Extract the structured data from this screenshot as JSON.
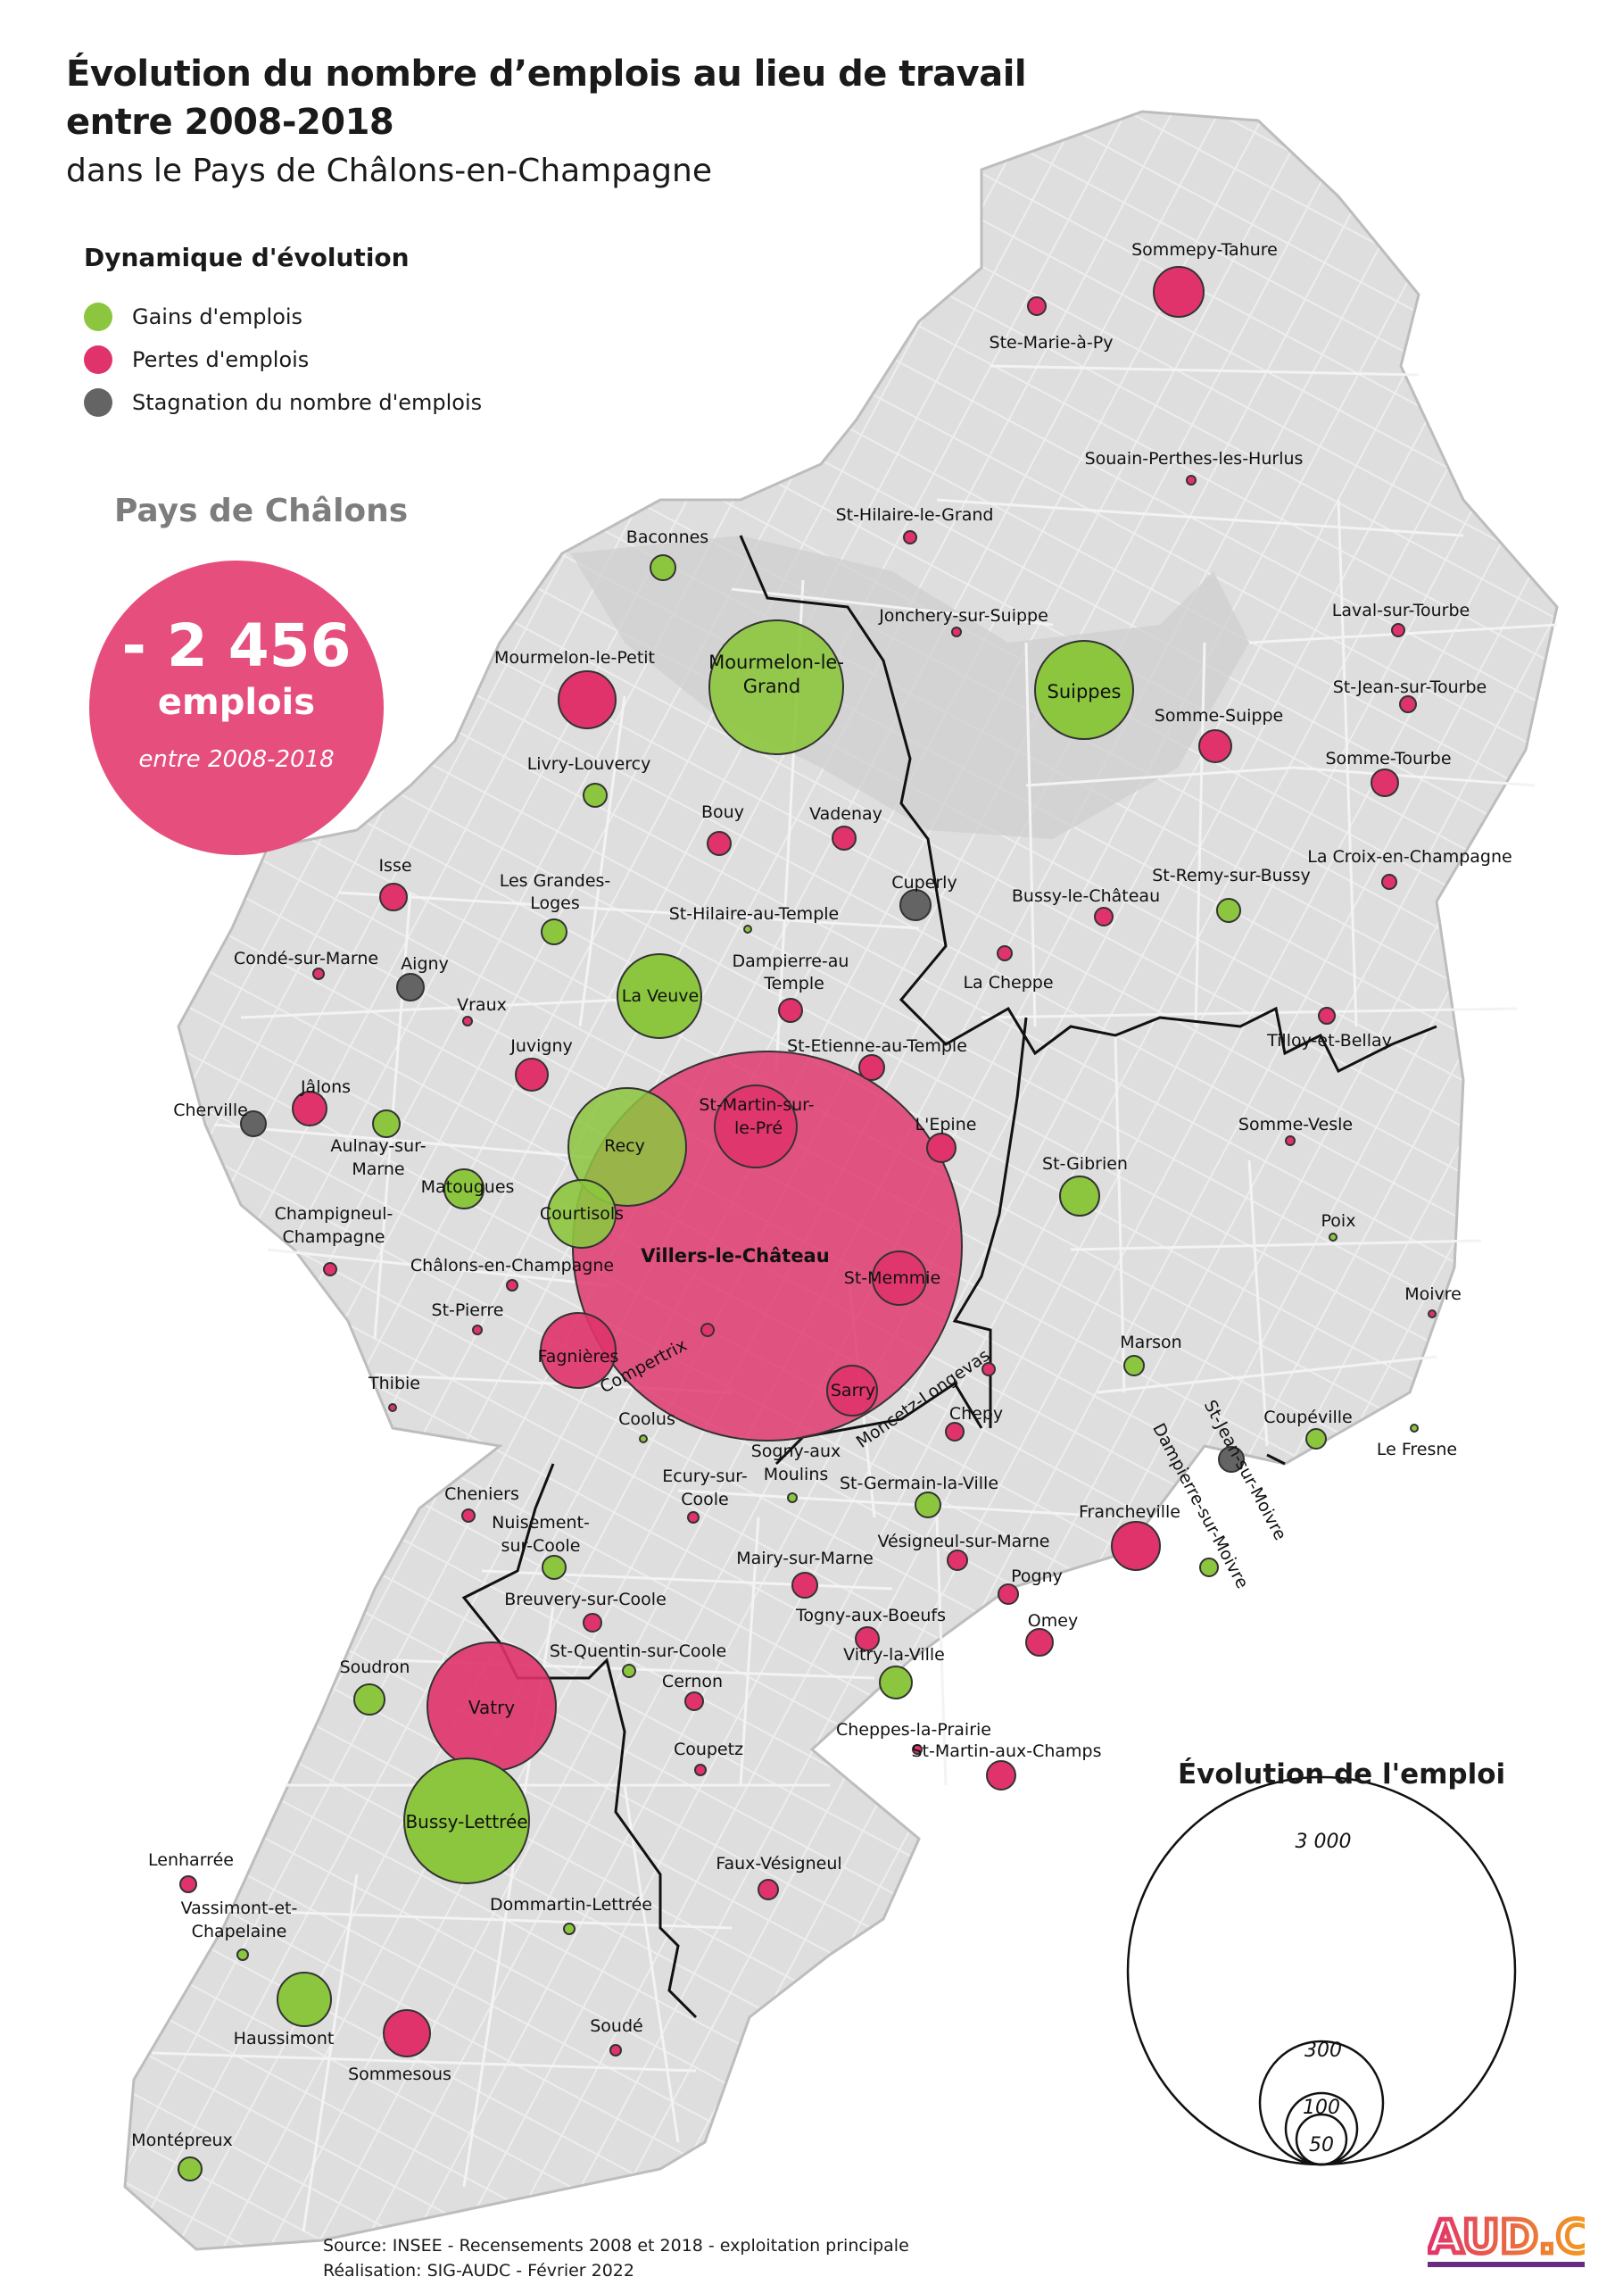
{
  "title": {
    "line1": "Évolution du nombre d’emplois au lieu de travail",
    "line2": "entre 2008-2018",
    "line3": "dans le Pays de Châlons-en-Champagne"
  },
  "legend": {
    "title": "Dynamique d'évolution",
    "items": [
      {
        "label": "Gains d'emplois",
        "color": "#8cc63e"
      },
      {
        "label": "Pertes d'emplois",
        "color": "#e0336b"
      },
      {
        "label": "Stagnation du nombre d'emplois",
        "color": "#646464"
      }
    ]
  },
  "summary": {
    "label": "Pays de Châlons",
    "value": "- 2 456",
    "unit": "emplois",
    "period": "entre 2008-2018",
    "color": "#e64e7d"
  },
  "scale": {
    "title": "Évolution de l'emploi",
    "values": [
      "3 000",
      "300",
      "100",
      "50"
    ]
  },
  "source": {
    "line1": "Source: INSEE - Recensements 2008 et 2018 - exploitation principale",
    "line2": "Réalisation: SIG-AUDC - Février 2022"
  },
  "logo": {
    "text": "AUD.C"
  },
  "colors": {
    "gain": "#8cc63e",
    "loss": "#e0336b",
    "stagnation": "#646464",
    "territory": "#dcdcdc",
    "urban": "#c8c8c8"
  },
  "rotated_labels": [
    "Compertrix",
    "Moncetz-Longevas",
    "St-Jean-sur-Moivre",
    "Dampierre-sur-Moivre"
  ],
  "communes": [
    {
      "name": "Sommepy-Tahure",
      "status": "loss",
      "size": "medium"
    },
    {
      "name": "Ste-Marie-à-Py",
      "status": "loss",
      "size": "small"
    },
    {
      "name": "Souain-Perthes-les-Hurlus",
      "status": "loss",
      "size": "tiny"
    },
    {
      "name": "St-Hilaire-le-Grand",
      "status": "loss",
      "size": "tiny"
    },
    {
      "name": "Baconnes",
      "status": "gain",
      "size": "small"
    },
    {
      "name": "Jonchery-sur-Suippe",
      "status": "loss",
      "size": "tiny"
    },
    {
      "name": "Laval-sur-Tourbe",
      "status": "loss",
      "size": "tiny"
    },
    {
      "name": "Mourmelon-le-Petit",
      "status": "loss",
      "size": "medium"
    },
    {
      "name": "Mourmelon-le-Grand",
      "status": "gain",
      "size": "large"
    },
    {
      "name": "Suippes",
      "status": "gain",
      "size": "large"
    },
    {
      "name": "St-Jean-sur-Tourbe",
      "status": "loss",
      "size": "tiny"
    },
    {
      "name": "Somme-Suippe",
      "status": "loss",
      "size": "small"
    },
    {
      "name": "Somme-Tourbe",
      "status": "loss",
      "size": "small"
    },
    {
      "name": "Livry-Louvercy",
      "status": "gain",
      "size": "small"
    },
    {
      "name": "Bouy",
      "status": "loss",
      "size": "small"
    },
    {
      "name": "Vadenay",
      "status": "loss",
      "size": "small"
    },
    {
      "name": "La Croix-en-Champagne",
      "status": "loss",
      "size": "tiny"
    },
    {
      "name": "Isse",
      "status": "loss",
      "size": "small"
    },
    {
      "name": "Les Grandes-Loges",
      "status": "gain",
      "size": "small"
    },
    {
      "name": "Cuperly",
      "status": "stagnation",
      "size": "small"
    },
    {
      "name": "Bussy-le-Château",
      "status": "loss",
      "size": "tiny"
    },
    {
      "name": "St-Remy-sur-Bussy",
      "status": "gain",
      "size": "small"
    },
    {
      "name": "St-Hilaire-au-Temple",
      "status": "gain",
      "size": "tiny"
    },
    {
      "name": "Condé-sur-Marne",
      "status": "loss",
      "size": "tiny"
    },
    {
      "name": "Aigny",
      "status": "stagnation",
      "size": "small"
    },
    {
      "name": "Dampierre-au-Temple",
      "status": "loss",
      "size": "small"
    },
    {
      "name": "La Cheppe",
      "status": "loss",
      "size": "tiny"
    },
    {
      "name": "Vraux",
      "status": "loss",
      "size": "tiny"
    },
    {
      "name": "La Veuve",
      "status": "gain",
      "size": "large"
    },
    {
      "name": "Tilloy-et-Bellay",
      "status": "loss",
      "size": "tiny"
    },
    {
      "name": "Juvigny",
      "status": "loss",
      "size": "small"
    },
    {
      "name": "St-Etienne-au-Temple",
      "status": "loss",
      "size": "small"
    },
    {
      "name": "Jâlons",
      "status": "loss",
      "size": "small"
    },
    {
      "name": "Cherville",
      "status": "stagnation",
      "size": "small"
    },
    {
      "name": "St-Martin-sur-le-Pré",
      "status": "loss",
      "size": "medium"
    },
    {
      "name": "L'Epine",
      "status": "loss",
      "size": "small"
    },
    {
      "name": "Somme-Vesle",
      "status": "loss",
      "size": "tiny"
    },
    {
      "name": "Aulnay-sur-Marne",
      "status": "gain",
      "size": "small"
    },
    {
      "name": "Recy",
      "status": "gain",
      "size": "large"
    },
    {
      "name": "Matougues",
      "status": "gain",
      "size": "small"
    },
    {
      "name": "Courtisols",
      "status": "gain",
      "size": "small"
    },
    {
      "name": "St-Gibrien",
      "status": "gain",
      "size": "medium"
    },
    {
      "name": "Poix",
      "status": "gain",
      "size": "tiny"
    },
    {
      "name": "Champigneul-Champagne",
      "status": "loss",
      "size": "tiny"
    },
    {
      "name": "Châlons-en-Champagne",
      "status": "loss",
      "size": "huge"
    },
    {
      "name": "Villers-le-Château",
      "status": "loss",
      "size": "tiny"
    },
    {
      "name": "St-Memmie",
      "status": "loss",
      "size": "small"
    },
    {
      "name": "Moivre",
      "status": "loss",
      "size": "tiny"
    },
    {
      "name": "St-Pierre",
      "status": "loss",
      "size": "tiny"
    },
    {
      "name": "Fagnières",
      "status": "loss",
      "size": "medium"
    },
    {
      "name": "Marson",
      "status": "gain",
      "size": "small"
    },
    {
      "name": "Thibie",
      "status": "loss",
      "size": "tiny"
    },
    {
      "name": "Sarry",
      "status": "loss",
      "size": "small"
    },
    {
      "name": "Coolus",
      "status": "gain",
      "size": "tiny"
    },
    {
      "name": "Chepy",
      "status": "loss",
      "size": "small"
    },
    {
      "name": "Coupéville",
      "status": "gain",
      "size": "small"
    },
    {
      "name": "Le Fresne",
      "status": "gain",
      "size": "tiny"
    },
    {
      "name": "Sogny-aux-Moulins",
      "status": "gain",
      "size": "tiny"
    },
    {
      "name": "Cheniers",
      "status": "loss",
      "size": "tiny"
    },
    {
      "name": "Ecury-sur-Coole",
      "status": "loss",
      "size": "tiny"
    },
    {
      "name": "St-Germain-la-Ville",
      "status": "gain",
      "size": "small"
    },
    {
      "name": "Nuisement-sur-Coole",
      "status": "gain",
      "size": "small"
    },
    {
      "name": "Francheville",
      "status": "loss",
      "size": "medium"
    },
    {
      "name": "Vésigneul-sur-Marne",
      "status": "loss",
      "size": "small"
    },
    {
      "name": "Mairy-sur-Marne",
      "status": "loss",
      "size": "small"
    },
    {
      "name": "Pogny",
      "status": "loss",
      "size": "small"
    },
    {
      "name": "Breuvery-sur-Coole",
      "status": "loss",
      "size": "small"
    },
    {
      "name": "Togny-aux-Boeufs",
      "status": "loss",
      "size": "small"
    },
    {
      "name": "Omey",
      "status": "loss",
      "size": "small"
    },
    {
      "name": "St-Quentin-sur-Coole",
      "status": "gain",
      "size": "tiny"
    },
    {
      "name": "Vitry-la-Ville",
      "status": "gain",
      "size": "small"
    },
    {
      "name": "Soudron",
      "status": "gain",
      "size": "small"
    },
    {
      "name": "Cernon",
      "status": "loss",
      "size": "small"
    },
    {
      "name": "Vatry",
      "status": "loss",
      "size": "large"
    },
    {
      "name": "Cheppes-la-Prairie",
      "status": "loss",
      "size": "tiny"
    },
    {
      "name": "Coupetz",
      "status": "loss",
      "size": "tiny"
    },
    {
      "name": "St-Martin-aux-Champs",
      "status": "loss",
      "size": "small"
    },
    {
      "name": "Bussy-Lettrée",
      "status": "gain",
      "size": "large"
    },
    {
      "name": "Faux-Vésigneul",
      "status": "loss",
      "size": "small"
    },
    {
      "name": "Lenharrée",
      "status": "loss",
      "size": "tiny"
    },
    {
      "name": "Vassimont-et-Chapelaine",
      "status": "gain",
      "size": "tiny"
    },
    {
      "name": "Dommartin-Lettrée",
      "status": "gain",
      "size": "tiny"
    },
    {
      "name": "Haussimont",
      "status": "gain",
      "size": "medium"
    },
    {
      "name": "Sommesous",
      "status": "loss",
      "size": "medium"
    },
    {
      "name": "Soudé",
      "status": "loss",
      "size": "tiny"
    },
    {
      "name": "Montépreux",
      "status": "gain",
      "size": "small"
    }
  ]
}
